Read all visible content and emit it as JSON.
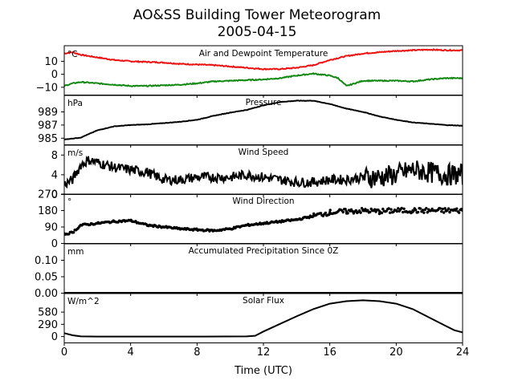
{
  "figure": {
    "title_line1": "AO&SS Building Tower Meteorogram",
    "title_line2": "2005-04-15",
    "xlabel": "Time (UTC)"
  },
  "chart_data": [
    {
      "type": "line",
      "title": "Air and Dewpoint Temperature",
      "unit": "°C",
      "xlim": [
        0,
        24
      ],
      "ylim": [
        -16,
        22
      ],
      "yticks": [
        10,
        0,
        -10
      ],
      "ytick_labels": [
        "10",
        "0",
        "−10"
      ],
      "series": [
        {
          "color": "#ee1111",
          "x": [
            0,
            0.5,
            1,
            2,
            3,
            4,
            5,
            6,
            7,
            8,
            9,
            10,
            11,
            12,
            13,
            14,
            15,
            16,
            17,
            18,
            19,
            20,
            21,
            22,
            23,
            24
          ],
          "values": [
            16,
            17,
            15,
            13,
            11,
            10,
            9.5,
            9,
            8,
            7.5,
            7,
            6,
            5,
            4,
            4,
            5,
            7,
            11,
            14,
            16,
            17,
            18,
            18.5,
            19,
            18.5,
            18.5
          ]
        },
        {
          "color": "#118811",
          "x": [
            0,
            0.5,
            1,
            2,
            3,
            4,
            5,
            6,
            7,
            8,
            9,
            10,
            11,
            12,
            13,
            14,
            15,
            16,
            16.5,
            17,
            18,
            19,
            20,
            21,
            22,
            23,
            24
          ],
          "values": [
            -9,
            -7,
            -6,
            -7,
            -8,
            -9,
            -9,
            -8.5,
            -8,
            -7,
            -5.5,
            -5,
            -4.5,
            -4,
            -3,
            -1,
            0.5,
            -1,
            -3,
            -9,
            -5,
            -5,
            -5,
            -5.5,
            -4,
            -3,
            -3
          ]
        }
      ]
    },
    {
      "type": "line",
      "title": "Pressure",
      "unit": "hPa",
      "xlim": [
        0,
        24
      ],
      "ylim": [
        984,
        991.5
      ],
      "yticks": [
        989,
        987,
        985
      ],
      "ytick_labels": [
        "989",
        "987",
        "985"
      ],
      "series": [
        {
          "color": "#000000",
          "x": [
            0,
            1,
            2,
            3,
            4,
            5,
            6,
            7,
            8,
            9,
            10,
            11,
            12,
            13,
            14,
            15,
            16,
            17,
            18,
            19,
            20,
            21,
            22,
            23,
            24
          ],
          "values": [
            984.8,
            985.1,
            986.2,
            986.8,
            987.0,
            987.1,
            987.3,
            987.5,
            987.8,
            988.4,
            988.9,
            989.3,
            990.0,
            990.5,
            990.7,
            990.7,
            990.2,
            989.5,
            989.0,
            988.3,
            987.8,
            987.4,
            987.2,
            987.0,
            986.9
          ]
        }
      ]
    },
    {
      "type": "line",
      "title": "Wind Speed",
      "unit": "m/s",
      "xlim": [
        0,
        24
      ],
      "ylim": [
        0,
        10
      ],
      "yticks": [
        8,
        4,
        0
      ],
      "ytick_labels": [
        "8",
        "4",
        "0"
      ],
      "series": [
        {
          "color": "#000000",
          "x": [
            0,
            0.5,
            1,
            1.5,
            2,
            3,
            4,
            5,
            6,
            7,
            8,
            9,
            10,
            11,
            12,
            13,
            14,
            15,
            16,
            17,
            18,
            19,
            20,
            21,
            22,
            23,
            24
          ],
          "values": [
            2,
            3,
            6,
            7,
            6.5,
            5.5,
            5,
            4.5,
            3,
            3,
            3.5,
            3.5,
            3.5,
            4,
            3.5,
            3,
            2.5,
            2.5,
            3,
            3,
            3.5,
            3.5,
            4,
            5,
            4.5,
            4,
            4
          ]
        }
      ]
    },
    {
      "type": "scatter",
      "title": "Wind Direction",
      "unit": "°",
      "xlim": [
        0,
        24
      ],
      "ylim": [
        0,
        270
      ],
      "yticks": [
        270,
        180,
        90,
        0
      ],
      "ytick_labels": [
        "270",
        "180",
        "90",
        "0"
      ],
      "series": [
        {
          "color": "#000000",
          "x": [
            0,
            0.5,
            1,
            2,
            3,
            4,
            5,
            6,
            7,
            8,
            9,
            10,
            11,
            12,
            13,
            14,
            15,
            16,
            17,
            18,
            19,
            20,
            21,
            22,
            23,
            24
          ],
          "values": [
            50,
            60,
            100,
            110,
            120,
            125,
            100,
            90,
            80,
            75,
            70,
            80,
            100,
            110,
            120,
            130,
            150,
            170,
            175,
            180,
            175,
            180,
            180,
            180,
            180,
            180
          ]
        }
      ]
    },
    {
      "type": "line",
      "title": "Accumulated Precipitation Since 0Z",
      "unit": "mm",
      "xlim": [
        0,
        24
      ],
      "ylim": [
        0,
        0.15
      ],
      "yticks": [
        0.1,
        0.05,
        0.0
      ],
      "ytick_labels": [
        "0.10",
        "0.05",
        "0.00"
      ],
      "series": [
        {
          "color": "#000000",
          "x": [
            0,
            24
          ],
          "values": [
            0,
            0
          ]
        }
      ]
    },
    {
      "type": "line",
      "title": "Solar Flux",
      "unit": "W/m^2",
      "xlim": [
        0,
        24
      ],
      "ylim": [
        -150,
        1020
      ],
      "yticks": [
        580,
        290,
        0
      ],
      "ytick_labels": [
        "580",
        "290",
        "0"
      ],
      "xticks": [
        0,
        4,
        8,
        12,
        16,
        20,
        24
      ],
      "series": [
        {
          "color": "#000000",
          "x": [
            0,
            0.5,
            1,
            2,
            4,
            8,
            11,
            11.5,
            12,
            13,
            14,
            15,
            16,
            17,
            18,
            19,
            20,
            21,
            22,
            23,
            23.5,
            24
          ],
          "values": [
            80,
            30,
            5,
            0,
            0,
            0,
            5,
            20,
            120,
            300,
            480,
            650,
            780,
            840,
            860,
            840,
            780,
            650,
            450,
            250,
            150,
            100
          ]
        }
      ]
    }
  ]
}
